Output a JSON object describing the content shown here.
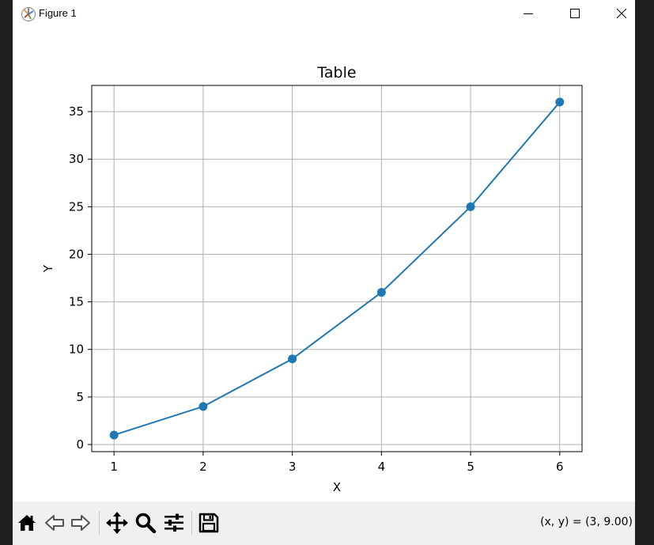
{
  "window": {
    "title": "Figure 1",
    "buttons": {
      "minimize": "minimize-icon",
      "maximize": "maximize-icon",
      "close": "close-icon"
    }
  },
  "chart_data": {
    "type": "line",
    "title": "Table",
    "xlabel": "X",
    "ylabel": "Y",
    "x": [
      1,
      2,
      3,
      4,
      5,
      6
    ],
    "series": [
      {
        "values": [
          1,
          4,
          9,
          16,
          25,
          36
        ],
        "color": "#1f77b4",
        "marker": "circle"
      }
    ],
    "xticks": [
      1,
      2,
      3,
      4,
      5,
      6
    ],
    "yticks": [
      0,
      5,
      10,
      15,
      20,
      25,
      30,
      35
    ],
    "xlim": [
      0.75,
      6.25
    ],
    "ylim": [
      -0.75,
      37.75
    ],
    "grid": true
  },
  "toolbar": {
    "icons": [
      "home-icon",
      "back-icon",
      "forward-icon",
      "pan-icon",
      "zoom-icon",
      "configure-subplots-icon",
      "save-icon"
    ],
    "coords_text": "(x, y) = (3, 9.00)"
  }
}
